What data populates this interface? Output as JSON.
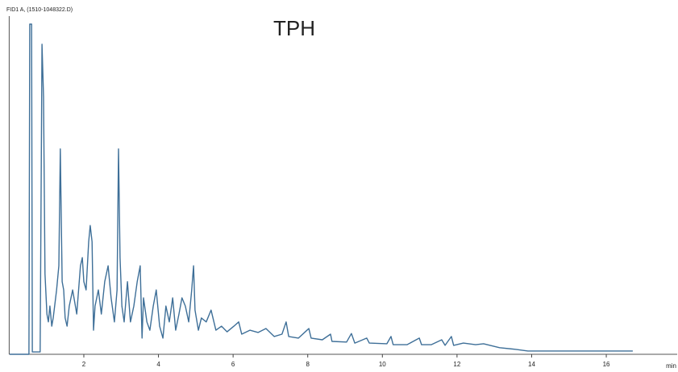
{
  "chart_data": {
    "type": "line",
    "header": "FID1 A, (1510-1048322.D)",
    "title": "TPH",
    "x_unit": "min",
    "xlim": [
      0,
      17.9
    ],
    "ylim": [
      0,
      100
    ],
    "xticks": [
      2,
      4,
      6,
      8,
      10,
      12,
      14,
      16
    ],
    "series": [
      {
        "color": "#3e6f98",
        "x": [
          0.01,
          0.53,
          0.55,
          0.6,
          0.62,
          0.83,
          0.88,
          0.92,
          0.96,
          1.01,
          1.05,
          1.09,
          1.14,
          1.18,
          1.27,
          1.33,
          1.37,
          1.42,
          1.46,
          1.5,
          1.55,
          1.61,
          1.7,
          1.81,
          1.91,
          1.96,
          2.0,
          2.06,
          2.13,
          2.17,
          2.22,
          2.26,
          2.3,
          2.39,
          2.47,
          2.56,
          2.65,
          2.73,
          2.82,
          2.89,
          2.93,
          2.97,
          3.02,
          3.08,
          3.17,
          3.25,
          3.34,
          3.43,
          3.51,
          3.56,
          3.6,
          3.69,
          3.77,
          3.86,
          3.94,
          4.03,
          4.12,
          4.2,
          4.29,
          4.38,
          4.46,
          4.55,
          4.63,
          4.72,
          4.81,
          4.89,
          4.94,
          4.98,
          5.07,
          5.15,
          5.28,
          5.41,
          5.54,
          5.69,
          5.84,
          6.02,
          6.15,
          6.23,
          6.45,
          6.67,
          6.88,
          7.1,
          7.31,
          7.42,
          7.49,
          7.75,
          8.03,
          8.09,
          8.39,
          8.61,
          8.65,
          9.04,
          9.17,
          9.26,
          9.58,
          9.65,
          10.12,
          10.23,
          10.29,
          10.66,
          10.99,
          11.05,
          11.31,
          11.59,
          11.68,
          11.85,
          11.91,
          12.17,
          12.5,
          12.71,
          13.14,
          13.58,
          13.9,
          14.87,
          16.71
        ],
        "values": [
          0,
          0,
          100,
          100,
          0.7,
          0.7,
          93.9,
          78.0,
          24.4,
          12.2,
          9.8,
          14.6,
          8.5,
          11.0,
          19.5,
          26.8,
          62.2,
          22.0,
          19.5,
          11.0,
          8.5,
          14.6,
          19.5,
          12.2,
          26.8,
          29.3,
          22.0,
          19.5,
          34.1,
          39.0,
          34.1,
          7.3,
          14.6,
          19.5,
          12.2,
          22.0,
          26.8,
          17.1,
          9.8,
          19.5,
          62.2,
          29.3,
          14.6,
          9.8,
          22.0,
          9.8,
          14.6,
          22.0,
          26.8,
          4.9,
          17.1,
          9.8,
          7.3,
          14.6,
          19.5,
          8.5,
          4.9,
          14.6,
          9.8,
          17.1,
          7.3,
          12.2,
          17.1,
          14.6,
          9.8,
          19.5,
          26.8,
          13.4,
          7.3,
          11.0,
          9.8,
          13.4,
          7.3,
          8.5,
          6.8,
          8.5,
          9.8,
          6.1,
          7.3,
          6.6,
          7.8,
          5.4,
          6.1,
          9.8,
          5.4,
          4.9,
          7.8,
          4.9,
          4.4,
          6.1,
          3.9,
          3.7,
          6.3,
          3.4,
          4.9,
          3.4,
          3.2,
          5.4,
          2.9,
          2.9,
          4.9,
          2.9,
          2.9,
          4.4,
          2.7,
          5.4,
          2.7,
          3.4,
          2.9,
          3.2,
          2.0,
          1.5,
          1.0,
          1.0,
          1.0
        ]
      }
    ]
  }
}
